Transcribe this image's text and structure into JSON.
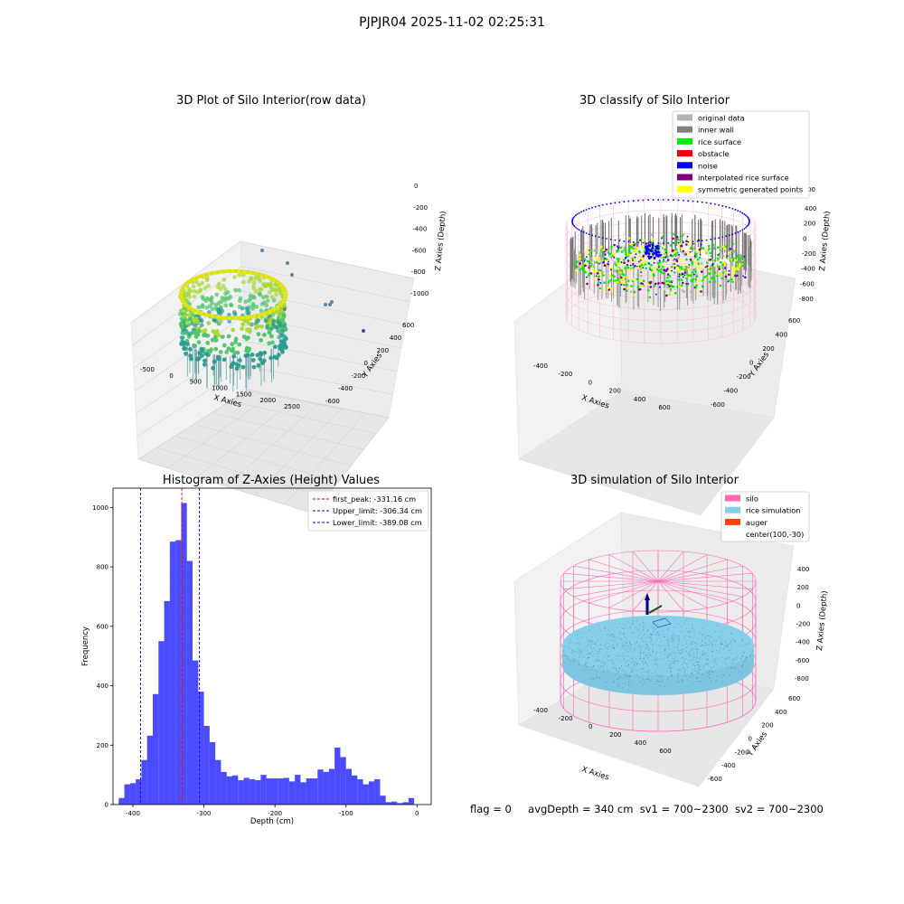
{
  "figure": {
    "suptitle": "PJPJR04 2025-11-02 02:25:31"
  },
  "panels": {
    "raw": {
      "title": "3D Plot of Silo Interior(row data)",
      "xlabel": "X Axies",
      "ylabel": "Y Axies",
      "zlabel": "Z Axies (Depth)",
      "xticks": [
        "-500",
        "0",
        "500",
        "1000",
        "1500",
        "2000",
        "2500"
      ],
      "yticks": [
        "600",
        "400",
        "200",
        "0",
        "-200",
        "-400",
        "-600"
      ],
      "zticks": [
        "0",
        "-200",
        "-400",
        "-600",
        "-800",
        "-1000"
      ]
    },
    "classify": {
      "title": "3D classify of Silo Interior",
      "xlabel": "X Axies",
      "ylabel": "Y Axies",
      "zlabel": "Z Axies (Depth)",
      "xticks": [
        "-400",
        "-200",
        "0",
        "200",
        "400",
        "600"
      ],
      "yticks": [
        "600",
        "400",
        "200",
        "0",
        "-200",
        "-400",
        "-600"
      ],
      "zticks": [
        "400",
        "200",
        "0",
        "-200",
        "-400",
        "-600",
        "-800"
      ],
      "zticks_clipped": [
        "00"
      ],
      "legend": [
        {
          "label": "original data",
          "color": "#b3b3b3"
        },
        {
          "label": "inner wall",
          "color": "#808080"
        },
        {
          "label": "rice surface",
          "color": "#00ee00"
        },
        {
          "label": "obstacle",
          "color": "#ee0000"
        },
        {
          "label": "noise",
          "color": "#0000ee"
        },
        {
          "label": "interpolated rice surface",
          "color": "#800080"
        },
        {
          "label": "symmetric generated points",
          "color": "#ffff00"
        }
      ]
    },
    "histogram": {
      "title": "Histogram of Z-Axies (Height) Values",
      "legend": [
        {
          "label": "first_peak: -331.16 cm",
          "color": "#ff0000"
        },
        {
          "label": "Upper_limit: -306.34 cm",
          "color": "#0000ff"
        },
        {
          "label": "Lower_limit: -389.08 cm",
          "color": "#0000ff"
        }
      ]
    },
    "simulation": {
      "title": "3D simulation of Silo Interior",
      "xlabel": "X Axies",
      "ylabel": "Y Axies",
      "zlabel": "Z Axies (Depth)",
      "xticks": [
        "-400",
        "-200",
        "0",
        "200",
        "400",
        "600"
      ],
      "yticks": [
        "600",
        "400",
        "200",
        "0",
        "-200",
        "-400",
        "-600"
      ],
      "zticks": [
        "400",
        "200",
        "0",
        "-200",
        "-400",
        "-600",
        "-800"
      ],
      "legend": [
        {
          "label": "silo",
          "color": "#ff69b4"
        },
        {
          "label": "rice simulation",
          "color": "#87ceeb"
        },
        {
          "label": "auger",
          "color": "#ff4500"
        },
        {
          "label": "center(100,-30)",
          "color": "none"
        }
      ]
    }
  },
  "footer": {
    "flag": "flag = 0",
    "avg_depth": "avgDepth = 340 cm",
    "sv1": "sv1 = 700~2300",
    "sv2": "sv2 = 700~2300"
  },
  "chart_data": {
    "type": "bar",
    "title": "Histogram of Z-Axies (Height) Values",
    "xlabel": "Depth (cm)",
    "ylabel": "Frequency",
    "xlim": [
      -428,
      20
    ],
    "ylim": [
      0,
      1065
    ],
    "xticks": [
      -400,
      -300,
      -200,
      -100,
      0
    ],
    "yticks": [
      0,
      200,
      400,
      600,
      800,
      1000
    ],
    "bin_width": 8,
    "bins": [
      {
        "x0": -420,
        "x1": -412,
        "value": 22
      },
      {
        "x0": -412,
        "x1": -404,
        "value": 68
      },
      {
        "x0": -404,
        "x1": -396,
        "value": 72
      },
      {
        "x0": -396,
        "x1": -388,
        "value": 85
      },
      {
        "x0": -388,
        "x1": -380,
        "value": 150
      },
      {
        "x0": -380,
        "x1": -372,
        "value": 232
      },
      {
        "x0": -372,
        "x1": -364,
        "value": 372
      },
      {
        "x0": -364,
        "x1": -356,
        "value": 550
      },
      {
        "x0": -356,
        "x1": -348,
        "value": 685
      },
      {
        "x0": -348,
        "x1": -340,
        "value": 885
      },
      {
        "x0": -340,
        "x1": -332,
        "value": 890
      },
      {
        "x0": -332,
        "x1": -324,
        "value": 1015
      },
      {
        "x0": -324,
        "x1": -316,
        "value": 820
      },
      {
        "x0": -316,
        "x1": -308,
        "value": 485
      },
      {
        "x0": -308,
        "x1": -300,
        "value": 380
      },
      {
        "x0": -300,
        "x1": -292,
        "value": 265
      },
      {
        "x0": -292,
        "x1": -284,
        "value": 210
      },
      {
        "x0": -284,
        "x1": -276,
        "value": 150
      },
      {
        "x0": -276,
        "x1": -268,
        "value": 110
      },
      {
        "x0": -268,
        "x1": -260,
        "value": 95
      },
      {
        "x0": -260,
        "x1": -252,
        "value": 98
      },
      {
        "x0": -252,
        "x1": -244,
        "value": 82
      },
      {
        "x0": -244,
        "x1": -236,
        "value": 90
      },
      {
        "x0": -236,
        "x1": -228,
        "value": 85
      },
      {
        "x0": -228,
        "x1": -220,
        "value": 82
      },
      {
        "x0": -220,
        "x1": -212,
        "value": 100
      },
      {
        "x0": -212,
        "x1": -204,
        "value": 88
      },
      {
        "x0": -204,
        "x1": -196,
        "value": 88
      },
      {
        "x0": -196,
        "x1": -188,
        "value": 88
      },
      {
        "x0": -188,
        "x1": -180,
        "value": 90
      },
      {
        "x0": -180,
        "x1": -172,
        "value": 78
      },
      {
        "x0": -172,
        "x1": -164,
        "value": 100
      },
      {
        "x0": -164,
        "x1": -156,
        "value": 75
      },
      {
        "x0": -156,
        "x1": -148,
        "value": 88
      },
      {
        "x0": -148,
        "x1": -140,
        "value": 88
      },
      {
        "x0": -140,
        "x1": -132,
        "value": 118
      },
      {
        "x0": -132,
        "x1": -124,
        "value": 110
      },
      {
        "x0": -124,
        "x1": -116,
        "value": 120
      },
      {
        "x0": -116,
        "x1": -108,
        "value": 192
      },
      {
        "x0": -108,
        "x1": -100,
        "value": 160
      },
      {
        "x0": -100,
        "x1": -92,
        "value": 120
      },
      {
        "x0": -92,
        "x1": -84,
        "value": 98
      },
      {
        "x0": -84,
        "x1": -76,
        "value": 85
      },
      {
        "x0": -76,
        "x1": -68,
        "value": 68
      },
      {
        "x0": -68,
        "x1": -60,
        "value": 78
      },
      {
        "x0": -60,
        "x1": -52,
        "value": 85
      },
      {
        "x0": -52,
        "x1": -44,
        "value": 30
      },
      {
        "x0": -44,
        "x1": -36,
        "value": 8
      },
      {
        "x0": -36,
        "x1": -28,
        "value": 10
      },
      {
        "x0": -28,
        "x1": -20,
        "value": 5
      },
      {
        "x0": -20,
        "x1": -12,
        "value": 8
      },
      {
        "x0": -12,
        "x1": -4,
        "value": 22
      }
    ],
    "bar_color": "#0000ff",
    "vlines": [
      {
        "x": -331.16,
        "label": "first_peak: -331.16 cm",
        "color": "#ff0000"
      },
      {
        "x": -306.34,
        "label": "Upper_limit: -306.34 cm",
        "color": "#0000ff"
      },
      {
        "x": -389.08,
        "label": "Lower_limit: -389.08 cm",
        "color": "#0000ff"
      }
    ],
    "legend_position": "upper right",
    "grid": false
  }
}
